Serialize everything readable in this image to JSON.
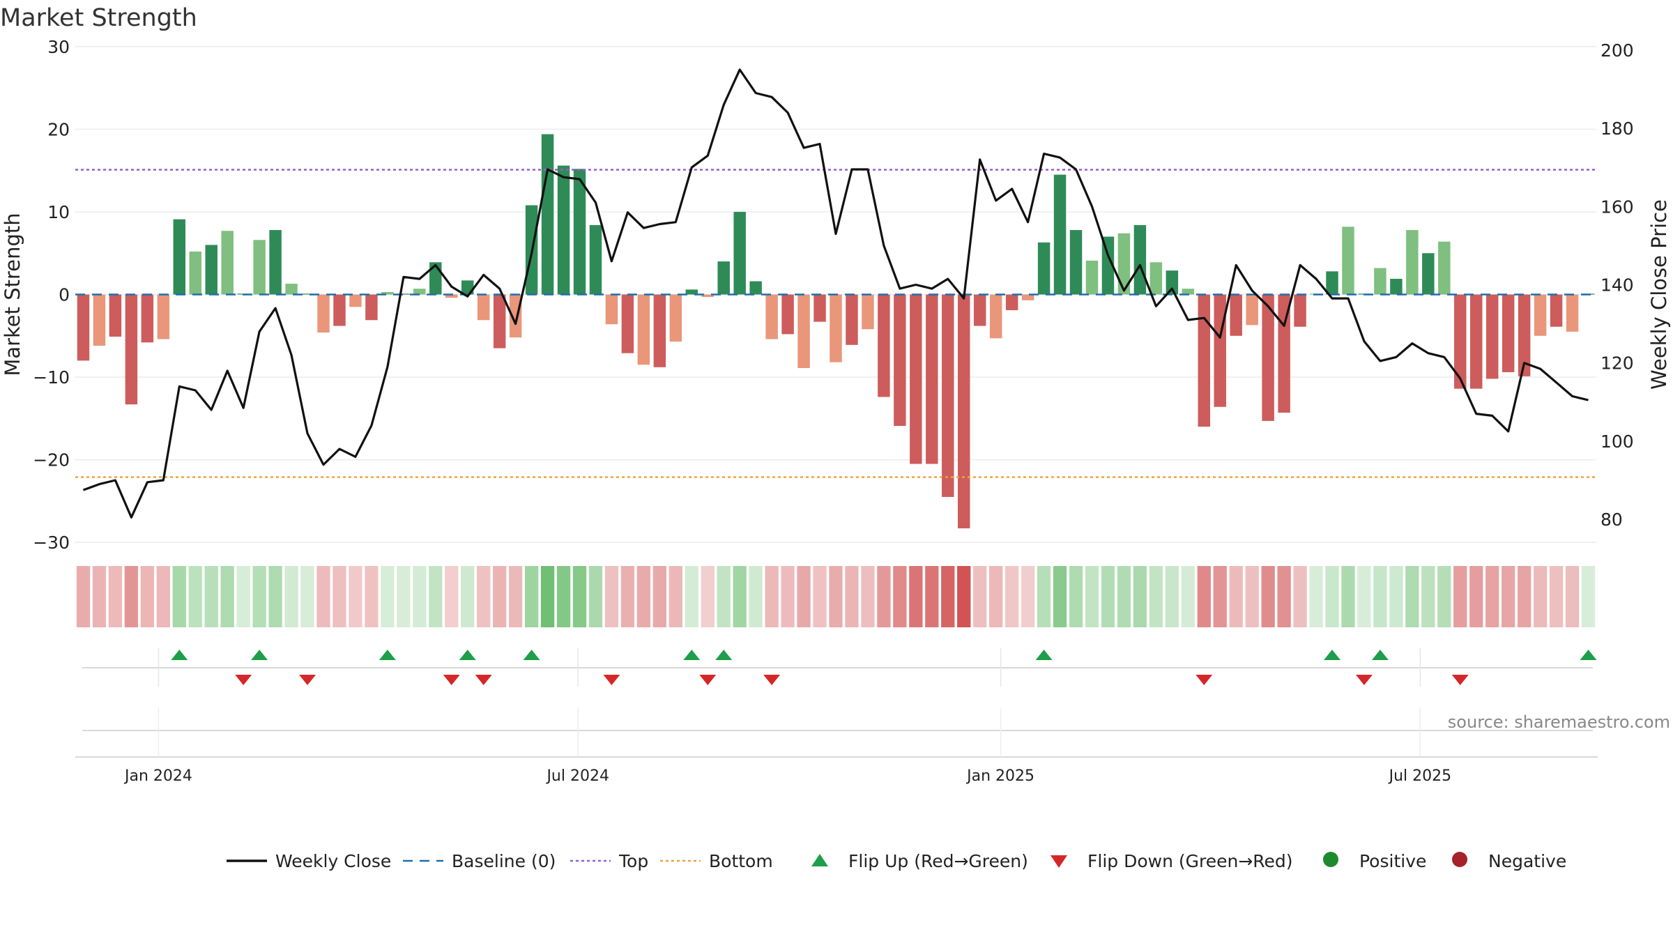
{
  "chart_data": {
    "type": "bar",
    "title": "Market Strength",
    "ylabel": "Market Strength",
    "y2label": "Weekly Close Price",
    "ylim": [
      -31,
      31
    ],
    "y2lim": [
      72,
      203
    ],
    "yticks": [
      "30",
      "20",
      "10",
      "0",
      "−10",
      "−20",
      "−30"
    ],
    "y2ticks": [
      "200",
      "180",
      "160",
      "140",
      "120",
      "100",
      "80"
    ],
    "xticks": [
      "Jan 2024",
      "Jul 2024",
      "Jan 2025",
      "Jul 2025"
    ],
    "xtick_weeks": [
      5.2,
      31.4,
      57.8,
      84.0
    ],
    "grid": true,
    "top_line": 15.1,
    "bottom_line": -22.1,
    "strength": [
      -8.0,
      -6.2,
      -5.1,
      -13.3,
      -5.8,
      -5.4,
      9.1,
      5.2,
      6.0,
      7.7,
      0.1,
      6.6,
      7.8,
      1.3,
      0.1,
      -4.6,
      -3.8,
      -1.5,
      -3.1,
      0.3,
      0.1,
      0.7,
      3.9,
      -0.4,
      1.7,
      -3.1,
      -6.5,
      -5.2,
      10.8,
      19.4,
      15.6,
      15.2,
      8.4,
      -3.6,
      -7.1,
      -8.5,
      -8.8,
      -5.7,
      0.6,
      -0.3,
      4.0,
      10.0,
      1.6,
      -5.4,
      -4.8,
      -8.9,
      -3.3,
      -8.2,
      -6.1,
      -4.2,
      -12.4,
      -15.9,
      -20.5,
      -20.5,
      -24.5,
      -28.3,
      -3.8,
      -5.3,
      -1.9,
      -0.7,
      6.3,
      14.5,
      7.8,
      4.1,
      7.0,
      7.4,
      8.4,
      3.9,
      2.9,
      0.7,
      -16.0,
      -13.6,
      -5.0,
      -3.7,
      -15.3,
      -14.3,
      -3.9,
      0.1,
      2.8,
      8.2,
      0.1,
      3.2,
      1.9,
      7.8,
      5.0,
      6.4,
      -11.4,
      -11.4,
      -10.2,
      -9.4,
      -9.9,
      -5.0,
      -3.9,
      -4.5,
      0.1
    ],
    "weekly_close": [
      87.5,
      89,
      90,
      80.5,
      89.5,
      90,
      114,
      113,
      108,
      118,
      108.5,
      128,
      134,
      122,
      102,
      94,
      98,
      96,
      104,
      119,
      142,
      141.5,
      145,
      139.5,
      137,
      142.5,
      139,
      130,
      148,
      169.5,
      167.5,
      167,
      161,
      146,
      158.5,
      154.5,
      155.5,
      156,
      170,
      173,
      186,
      195,
      189,
      188,
      184,
      175,
      176,
      153,
      169.5,
      169.5,
      150,
      139,
      140,
      139,
      141.5,
      136.5,
      172,
      161.5,
      164.5,
      156,
      173.5,
      172.5,
      169.5,
      160,
      147.5,
      138.5,
      145,
      134.5,
      139,
      131,
      131.5,
      126.5,
      145,
      138.5,
      134.5,
      129.5,
      145,
      141.5,
      136.5,
      136.5,
      125.5,
      120.5,
      121.5,
      125,
      122.5,
      121.5,
      116,
      107,
      106.5,
      102.5,
      120,
      118.5,
      115,
      111.5,
      110.5
    ],
    "flip_up": [
      6,
      11,
      19,
      24,
      28,
      38,
      40,
      60,
      78,
      81,
      94
    ],
    "flip_down": [
      10,
      14,
      23,
      25,
      33,
      39,
      43,
      70,
      80,
      86
    ],
    "series": [
      {
        "name": "Weekly Close",
        "color": "#111111"
      },
      {
        "name": "Baseline (0)",
        "color": "#1f6ea8"
      },
      {
        "name": "Top",
        "color": "#9b59d6"
      },
      {
        "name": "Bottom",
        "color": "#f0a040"
      },
      {
        "name": "Flip Up (Red→Green)",
        "color": "#1e9e4a"
      },
      {
        "name": "Flip Down (Green→Red)",
        "color": "#d62728"
      },
      {
        "name": "Positive",
        "color": "#1e8a2e"
      },
      {
        "name": "Negative",
        "color": "#a52228"
      }
    ],
    "colors": {
      "pos_strong": "#2e8b57",
      "pos_weak": "#7fbf7f",
      "neg_strong": "#cd5c5c",
      "neg_weak": "#e9967a"
    },
    "source": "source: sharemaestro.com"
  }
}
